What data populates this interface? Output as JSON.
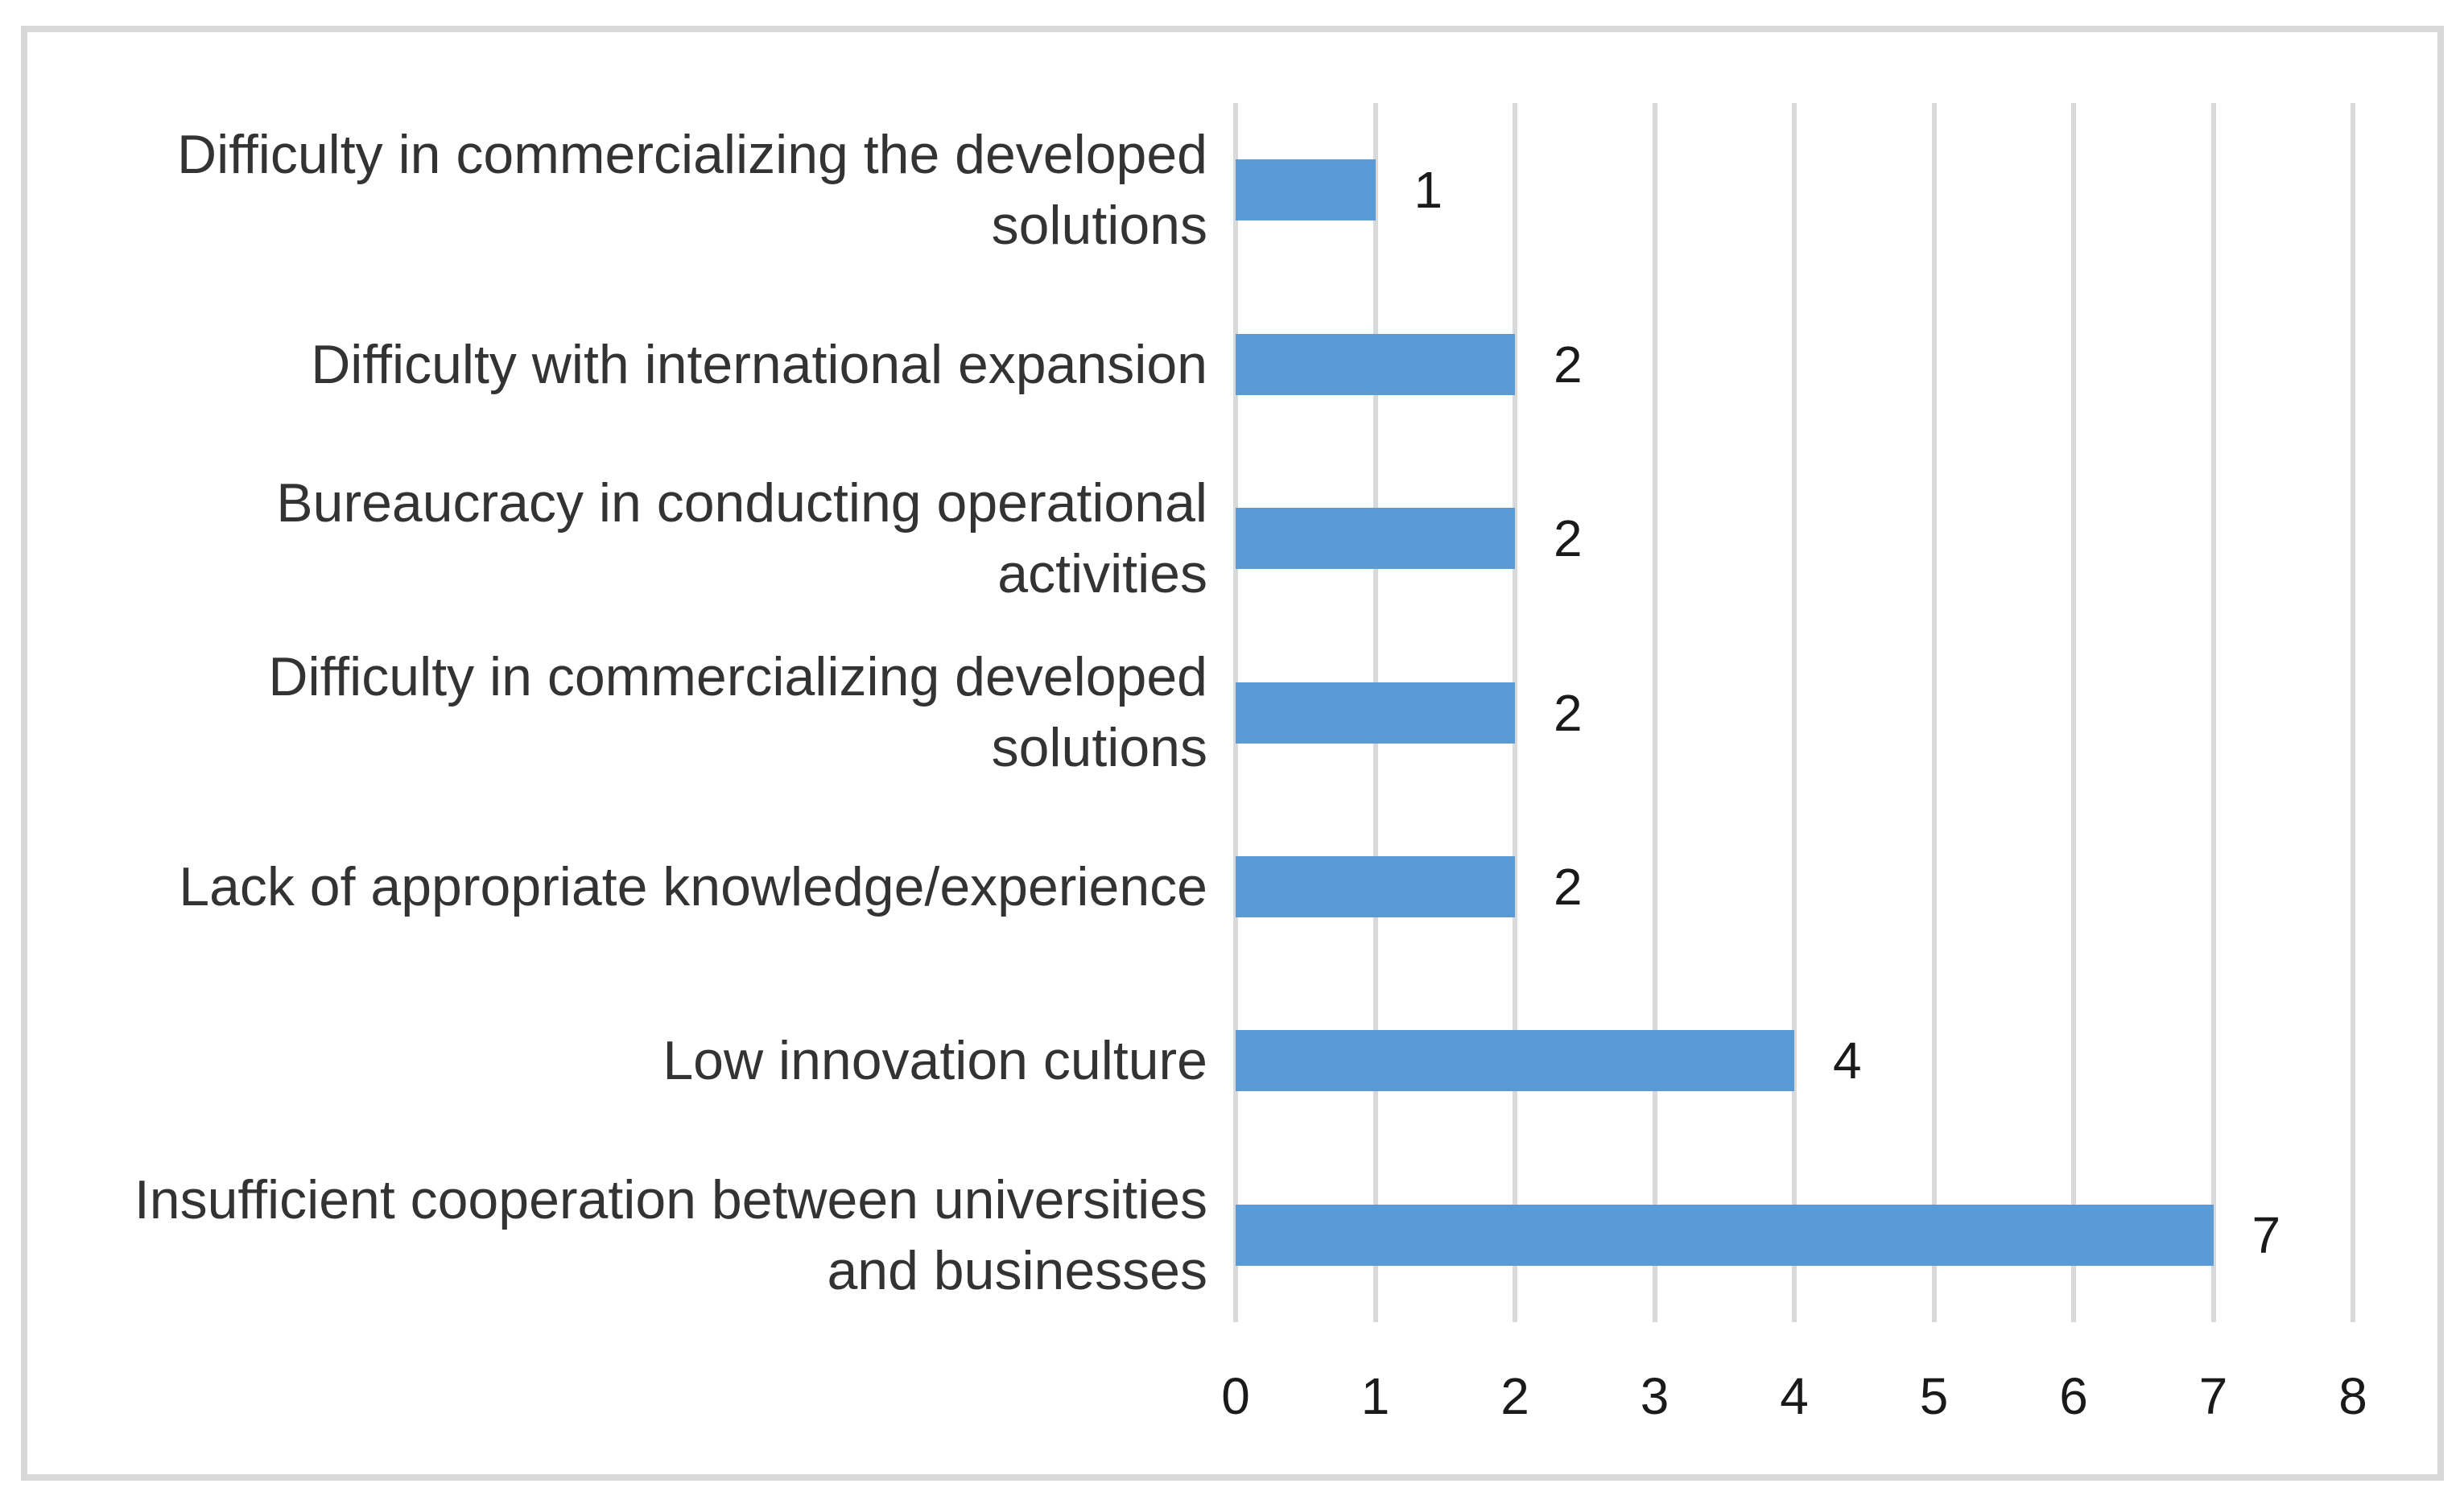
{
  "chart_data": {
    "type": "bar",
    "orientation": "horizontal",
    "title": "",
    "xlabel": "",
    "ylabel": "",
    "xlim": [
      0,
      8
    ],
    "x_ticks": [
      "0",
      "1",
      "2",
      "3",
      "4",
      "5",
      "6",
      "7",
      "8"
    ],
    "grid": "vertical",
    "legend": "none",
    "bar_color": "#5b9bd5",
    "gridline_color": "#d9d9d9",
    "frame_color": "#d8d8d8",
    "background_color": "#ffffff",
    "categories": [
      "Difficulty in commercializing the developed solutions",
      "Difficulty with international expansion",
      "Bureaucracy in conducting operational activities",
      "Difficulty in commercializing developed solutions",
      "Lack of appropriate knowledge/experience",
      "Low innovation culture",
      "Insufficient cooperation between universities and businesses"
    ],
    "category_lines": [
      [
        "Difficulty in commercializing the developed",
        "solutions"
      ],
      [
        "Difficulty with international expansion"
      ],
      [
        "Bureaucracy in conducting operational",
        "activities"
      ],
      [
        "Difficulty in commercializing developed",
        "solutions"
      ],
      [
        "Lack of appropriate knowledge/experience"
      ],
      [
        "Low innovation culture"
      ],
      [
        "Insufficient cooperation between universities",
        "and businesses"
      ]
    ],
    "values": [
      1,
      2,
      2,
      2,
      2,
      4,
      7
    ],
    "data_labels": [
      "1",
      "2",
      "2",
      "2",
      "2",
      "4",
      "7"
    ]
  }
}
